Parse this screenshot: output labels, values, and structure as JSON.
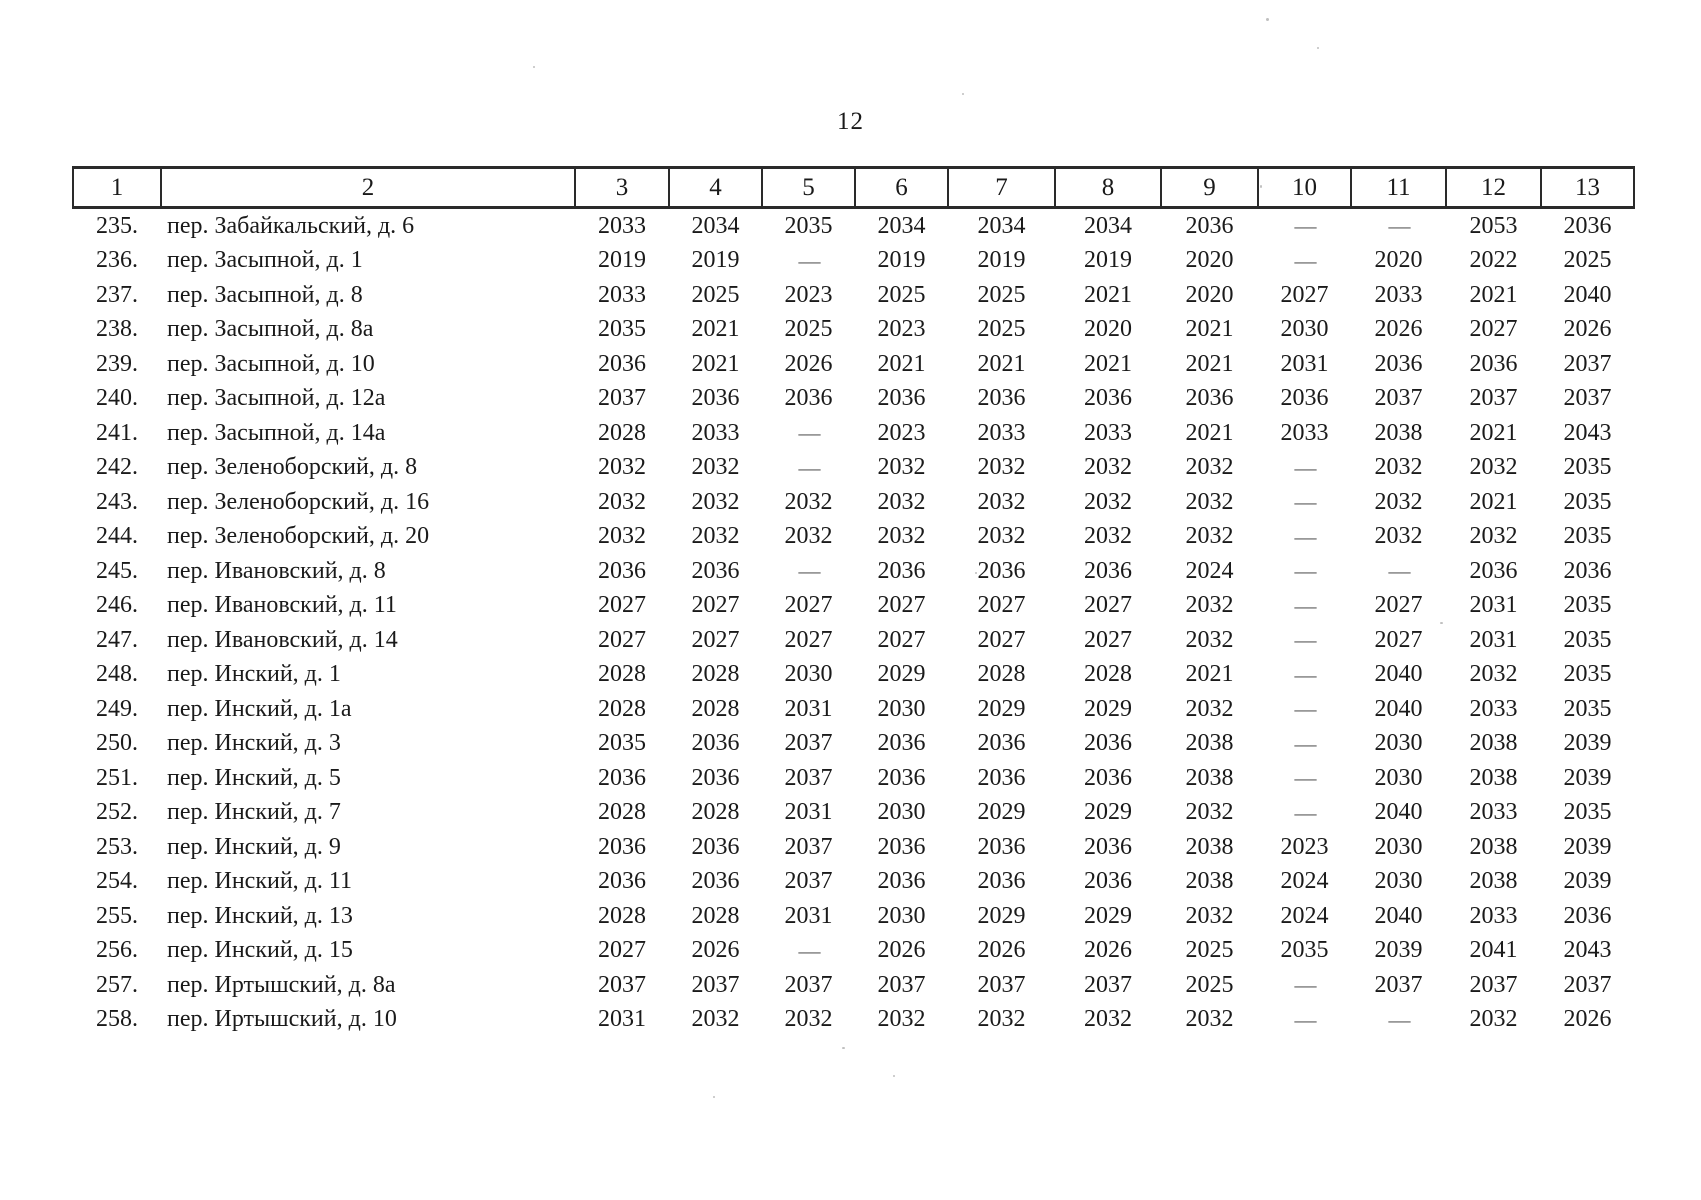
{
  "page": {
    "number": "12"
  },
  "table": {
    "headers": [
      "1",
      "2",
      "3",
      "4",
      "5",
      "6",
      "7",
      "8",
      "9",
      "10",
      "11",
      "12",
      "13"
    ],
    "dash": "—",
    "rows": [
      {
        "num": "235.",
        "address": "пер. Забайкальский, д. 6",
        "values": [
          "2033",
          "2034",
          "2035",
          "2034",
          "2034",
          "2034",
          "2036",
          "—",
          "—",
          "2053",
          "2036"
        ]
      },
      {
        "num": "236.",
        "address": "пер. Засыпной, д. 1",
        "values": [
          "2019",
          "2019",
          "—",
          "2019",
          "2019",
          "2019",
          "2020",
          "—",
          "2020",
          "2022",
          "2025"
        ]
      },
      {
        "num": "237.",
        "address": "пер. Засыпной, д. 8",
        "values": [
          "2033",
          "2025",
          "2023",
          "2025",
          "2025",
          "2021",
          "2020",
          "2027",
          "2033",
          "2021",
          "2040"
        ]
      },
      {
        "num": "238.",
        "address": "пер. Засыпной, д. 8а",
        "values": [
          "2035",
          "2021",
          "2025",
          "2023",
          "2025",
          "2020",
          "2021",
          "2030",
          "2026",
          "2027",
          "2026"
        ]
      },
      {
        "num": "239.",
        "address": "пер. Засыпной, д. 10",
        "values": [
          "2036",
          "2021",
          "2026",
          "2021",
          "2021",
          "2021",
          "2021",
          "2031",
          "2036",
          "2036",
          "2037"
        ]
      },
      {
        "num": "240.",
        "address": "пер. Засыпной, д. 12а",
        "values": [
          "2037",
          "2036",
          "2036",
          "2036",
          "2036",
          "2036",
          "2036",
          "2036",
          "2037",
          "2037",
          "2037"
        ]
      },
      {
        "num": "241.",
        "address": "пер. Засыпной, д. 14а",
        "values": [
          "2028",
          "2033",
          "—",
          "2023",
          "2033",
          "2033",
          "2021",
          "2033",
          "2038",
          "2021",
          "2043"
        ]
      },
      {
        "num": "242.",
        "address": "пер. Зеленоборский, д. 8",
        "values": [
          "2032",
          "2032",
          "—",
          "2032",
          "2032",
          "2032",
          "2032",
          "—",
          "2032",
          "2032",
          "2035"
        ]
      },
      {
        "num": "243.",
        "address": "пер. Зеленоборский, д. 16",
        "values": [
          "2032",
          "2032",
          "2032",
          "2032",
          "2032",
          "2032",
          "2032",
          "—",
          "2032",
          "2021",
          "2035"
        ]
      },
      {
        "num": "244.",
        "address": "пер. Зеленоборский, д. 20",
        "values": [
          "2032",
          "2032",
          "2032",
          "2032",
          "2032",
          "2032",
          "2032",
          "—",
          "2032",
          "2032",
          "2035"
        ]
      },
      {
        "num": "245.",
        "address": "пер. Ивановский, д. 8",
        "values": [
          "2036",
          "2036",
          "—",
          "2036",
          "2036",
          "2036",
          "2024",
          "—",
          "—",
          "2036",
          "2036"
        ]
      },
      {
        "num": "246.",
        "address": "пер. Ивановский, д. 11",
        "values": [
          "2027",
          "2027",
          "2027",
          "2027",
          "2027",
          "2027",
          "2032",
          "—",
          "2027",
          "2031",
          "2035"
        ]
      },
      {
        "num": "247.",
        "address": "пер. Ивановский, д. 14",
        "values": [
          "2027",
          "2027",
          "2027",
          "2027",
          "2027",
          "2027",
          "2032",
          "—",
          "2027",
          "2031",
          "2035"
        ]
      },
      {
        "num": "248.",
        "address": "пер. Инский, д. 1",
        "values": [
          "2028",
          "2028",
          "2030",
          "2029",
          "2028",
          "2028",
          "2021",
          "—",
          "2040",
          "2032",
          "2035"
        ]
      },
      {
        "num": "249.",
        "address": "пер. Инский, д. 1а",
        "values": [
          "2028",
          "2028",
          "2031",
          "2030",
          "2029",
          "2029",
          "2032",
          "—",
          "2040",
          "2033",
          "2035"
        ]
      },
      {
        "num": "250.",
        "address": "пер. Инский, д. 3",
        "values": [
          "2035",
          "2036",
          "2037",
          "2036",
          "2036",
          "2036",
          "2038",
          "—",
          "2030",
          "2038",
          "2039"
        ]
      },
      {
        "num": "251.",
        "address": "пер. Инский, д. 5",
        "values": [
          "2036",
          "2036",
          "2037",
          "2036",
          "2036",
          "2036",
          "2038",
          "—",
          "2030",
          "2038",
          "2039"
        ]
      },
      {
        "num": "252.",
        "address": "пер. Инский, д. 7",
        "values": [
          "2028",
          "2028",
          "2031",
          "2030",
          "2029",
          "2029",
          "2032",
          "—",
          "2040",
          "2033",
          "2035"
        ]
      },
      {
        "num": "253.",
        "address": "пер. Инский, д. 9",
        "values": [
          "2036",
          "2036",
          "2037",
          "2036",
          "2036",
          "2036",
          "2038",
          "2023",
          "2030",
          "2038",
          "2039"
        ]
      },
      {
        "num": "254.",
        "address": "пер. Инский, д. 11",
        "values": [
          "2036",
          "2036",
          "2037",
          "2036",
          "2036",
          "2036",
          "2038",
          "2024",
          "2030",
          "2038",
          "2039"
        ]
      },
      {
        "num": "255.",
        "address": "пер. Инский, д. 13",
        "values": [
          "2028",
          "2028",
          "2031",
          "2030",
          "2029",
          "2029",
          "2032",
          "2024",
          "2040",
          "2033",
          "2036"
        ]
      },
      {
        "num": "256.",
        "address": "пер. Инский, д. 15",
        "values": [
          "2027",
          "2026",
          "—",
          "2026",
          "2026",
          "2026",
          "2025",
          "2035",
          "2039",
          "2041",
          "2043"
        ]
      },
      {
        "num": "257.",
        "address": "пер. Иртышский, д. 8а",
        "values": [
          "2037",
          "2037",
          "2037",
          "2037",
          "2037",
          "2037",
          "2025",
          "—",
          "2037",
          "2037",
          "2037"
        ]
      },
      {
        "num": "258.",
        "address": "пер. Иртышский, д. 10",
        "values": [
          "2031",
          "2032",
          "2032",
          "2032",
          "2032",
          "2032",
          "2032",
          "—",
          "—",
          "2032",
          "2026"
        ]
      }
    ]
  }
}
